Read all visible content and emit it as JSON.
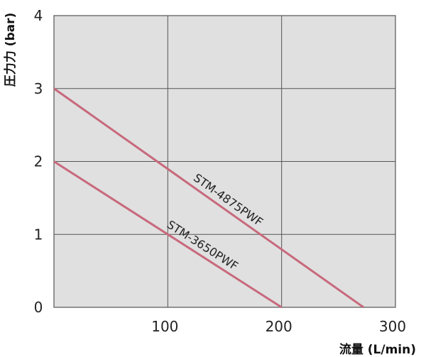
{
  "chart_data": {
    "type": "line",
    "xlabel": "流量 (L/min)",
    "ylabel": "圧力力 (bar)",
    "xlim": [
      0,
      300
    ],
    "ylim": [
      0,
      4
    ],
    "xticks": [
      100,
      200,
      300
    ],
    "yticks": [
      0,
      1,
      2,
      3,
      4
    ],
    "grid": true,
    "legend": "none",
    "colors": {
      "plot_background": "#e0e0e0",
      "grid": "#555555",
      "series": "#c8697c"
    },
    "series": [
      {
        "name": "STM-4875PWF",
        "x": [
          0,
          272
        ],
        "y": [
          3,
          0
        ]
      },
      {
        "name": "STM-3650PWF",
        "x": [
          0,
          200
        ],
        "y": [
          2,
          0
        ]
      }
    ]
  }
}
